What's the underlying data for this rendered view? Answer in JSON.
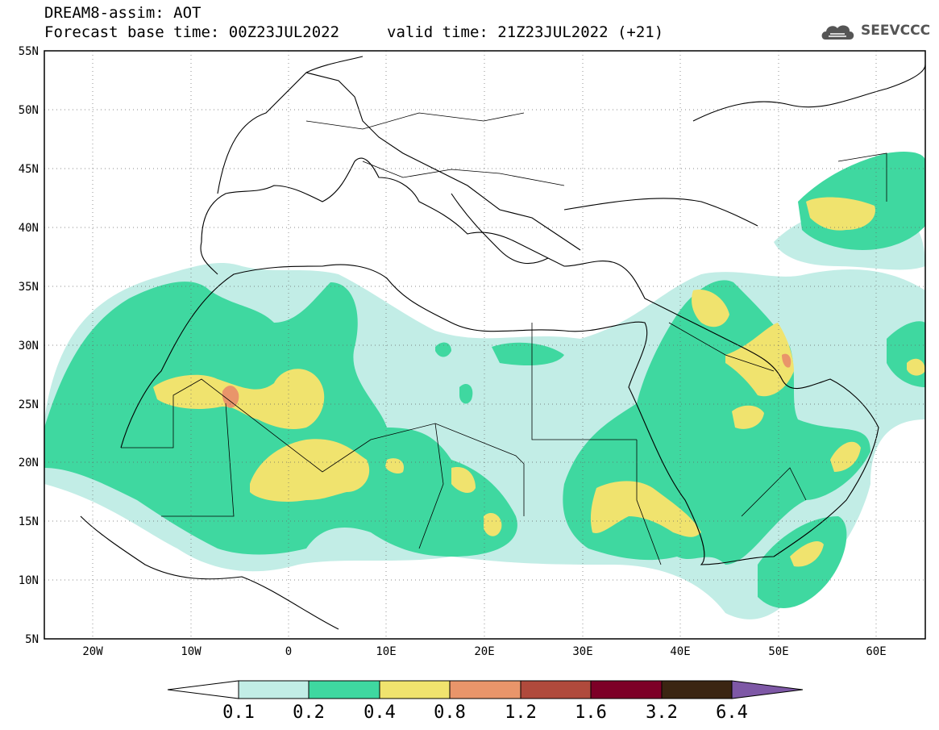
{
  "header": {
    "title": "DREAM8-assim: AOT",
    "base_time": "Forecast base time: 00Z23JUL2022",
    "valid_time": "valid time: 21Z23JUL2022 (+21)",
    "logo_text": "SEEVCCC"
  },
  "map": {
    "lon_range": [
      -25,
      65
    ],
    "lat_range": [
      5,
      55
    ],
    "lat_labels": [
      "55N",
      "50N",
      "45N",
      "40N",
      "35N",
      "30N",
      "25N",
      "20N",
      "15N",
      "10N",
      "5N"
    ],
    "lon_labels": [
      "20W",
      "10W",
      "0",
      "10E",
      "20E",
      "30E",
      "40E",
      "50E",
      "60E"
    ],
    "gridlines": "dotted"
  },
  "colorbar": {
    "labels": [
      "0.1",
      "0.2",
      "0.4",
      "0.8",
      "1.2",
      "1.6",
      "3.2",
      "6.4"
    ],
    "colors": [
      "#ffffff",
      "#c2ede6",
      "#3fd8a0",
      "#f0e36e",
      "#e9956a",
      "#b04a3c",
      "#7d0027",
      "#3b2512",
      "#7e58a6"
    ]
  }
}
